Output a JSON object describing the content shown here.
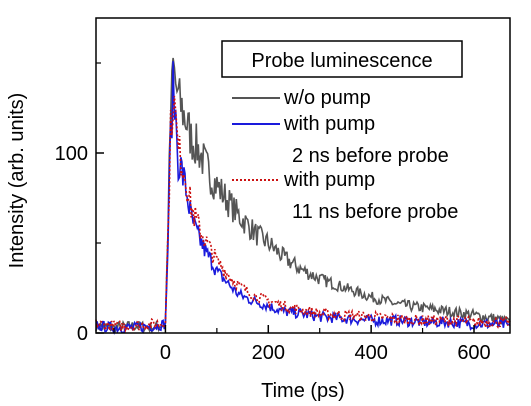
{
  "chart_data": {
    "type": "line",
    "xlabel": "Time (ps)",
    "ylabel": "Intensity (arb. units)",
    "xlim": [
      -135,
      670
    ],
    "ylim": [
      0,
      175
    ],
    "x_ticks": [
      0,
      200,
      400,
      600
    ],
    "x_tick_labels": [
      "0",
      "200",
      "400",
      "600"
    ],
    "y_ticks": [
      0,
      100
    ],
    "y_tick_labels": [
      "0",
      "100"
    ],
    "x_minor_ticks": [
      -100,
      100,
      300,
      500
    ],
    "y_minor_ticks": [
      50,
      150
    ],
    "legend": {
      "title": "Probe luminescence",
      "placement": "top-right",
      "entries": [
        {
          "line1": "w/o pump",
          "line2": ""
        },
        {
          "line1": "with pump",
          "line2": "2 ns before probe"
        },
        {
          "line1": "with pump",
          "line2": "11 ns before probe"
        }
      ]
    },
    "series": [
      {
        "color": "#555555",
        "dash": "none",
        "x": [
          -135,
          -100,
          -60,
          -20,
          0,
          5,
          10,
          15,
          20,
          25,
          30,
          40,
          50,
          60,
          70,
          80,
          90,
          100,
          120,
          140,
          160,
          180,
          200,
          230,
          260,
          300,
          350,
          400,
          450,
          500,
          550,
          600,
          640,
          670
        ],
        "y": [
          4,
          3,
          4,
          3,
          5,
          60,
          120,
          148,
          138,
          130,
          126,
          118,
          108,
          104,
          98,
          92,
          86,
          82,
          74,
          66,
          60,
          54,
          50,
          42,
          36,
          30,
          25,
          20,
          16,
          14,
          12,
          10,
          8,
          6
        ]
      },
      {
        "color": "#1a1adc",
        "dash": "none",
        "x": [
          -135,
          -100,
          -60,
          -20,
          0,
          5,
          10,
          15,
          20,
          25,
          30,
          40,
          50,
          60,
          70,
          80,
          90,
          100,
          120,
          140,
          160,
          180,
          200,
          230,
          260,
          300,
          350,
          400,
          450,
          500,
          550,
          600,
          640,
          670
        ],
        "y": [
          4,
          3,
          3,
          4,
          5,
          50,
          110,
          135,
          120,
          96,
          92,
          80,
          64,
          56,
          50,
          44,
          40,
          34,
          28,
          22,
          19,
          17,
          15,
          12,
          11,
          9,
          8,
          7,
          7,
          6,
          6,
          5,
          5,
          4
        ]
      },
      {
        "color": "#cc1111",
        "dash": "2,2",
        "x": [
          -135,
          -100,
          -60,
          -20,
          0,
          5,
          10,
          15,
          20,
          25,
          30,
          40,
          50,
          60,
          70,
          80,
          90,
          100,
          120,
          140,
          160,
          180,
          200,
          230,
          260,
          300,
          350,
          400,
          450,
          500,
          550,
          600,
          640,
          670
        ],
        "y": [
          5,
          4,
          4,
          5,
          6,
          55,
          112,
          132,
          118,
          100,
          98,
          86,
          70,
          62,
          56,
          50,
          45,
          40,
          33,
          27,
          23,
          20,
          18,
          15,
          13,
          11,
          10,
          9,
          8,
          7,
          7,
          6,
          6,
          6
        ]
      }
    ]
  }
}
